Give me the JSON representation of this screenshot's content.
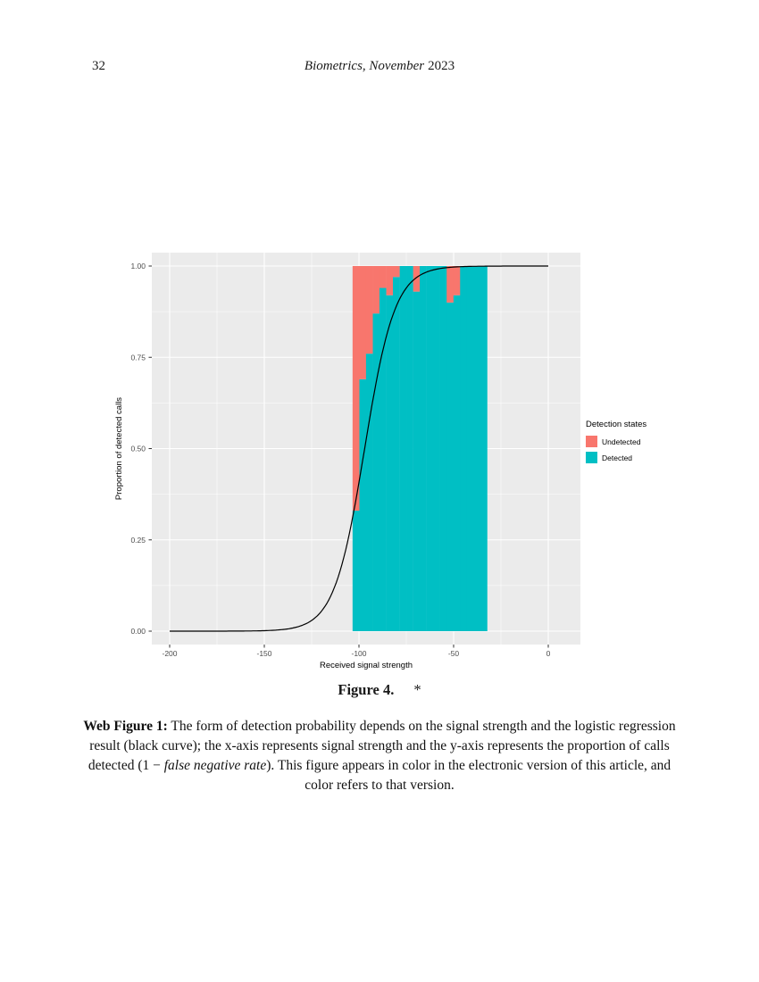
{
  "header": {
    "page_number": "32",
    "journal_italic": "Biometrics, November",
    "journal_year": "2023"
  },
  "figure": {
    "label": "Figure 4.",
    "star": "*"
  },
  "caption": {
    "segments": [
      {
        "text": "Web Figure 1:"
      },
      {
        "text": " The form of detection probability depends on the signal strength and the logistic regression result (black curve); the x-axis represents signal strength and the y-axis represents the proportion of calls detected (1 − "
      },
      {
        "text": "false negative rate"
      },
      {
        "text": "). This figure appears in color in the electronic version of this article, and color refers to that version."
      }
    ]
  },
  "chart_data": {
    "type": "bar",
    "subtype": "stacked-proportion-histogram-with-logistic-curve",
    "title": "",
    "xlabel": "Received signal strength",
    "ylabel": "Proportion of detected calls",
    "xlim": [
      -209,
      17
    ],
    "ylim": [
      -0.04,
      1.04
    ],
    "x_ticks": [
      -200,
      -150,
      -100,
      -50,
      0
    ],
    "x_tick_labels": [
      "-200",
      "-150",
      "-100",
      "-50",
      "0"
    ],
    "x_minor_ticks": [
      -175,
      -125,
      -75,
      -25
    ],
    "y_ticks": [
      0,
      0.25,
      0.5,
      0.75,
      1
    ],
    "y_tick_labels": [
      "0.00",
      "0.25",
      "0.50",
      "0.75",
      "1.00"
    ],
    "y_minor_ticks": [
      0.125,
      0.375,
      0.625,
      0.875
    ],
    "panel_bg": "#EBEBEB",
    "grid_color": "#FFFFFF",
    "tick_label_color": "#4D4D4D",
    "bar_width": 3.55,
    "series": [
      {
        "name": "Undetected",
        "color": "#F8766D"
      },
      {
        "name": "Detected",
        "color": "#00BFC4"
      }
    ],
    "bars": [
      {
        "x": -101.6,
        "detected": 0.33,
        "undetected": 0.67
      },
      {
        "x": -98.0,
        "detected": 0.69,
        "undetected": 0.31
      },
      {
        "x": -94.5,
        "detected": 0.76,
        "undetected": 0.24
      },
      {
        "x": -90.9,
        "detected": 0.87,
        "undetected": 0.13
      },
      {
        "x": -87.4,
        "detected": 0.94,
        "undetected": 0.06
      },
      {
        "x": -83.8,
        "detected": 0.92,
        "undetected": 0.08
      },
      {
        "x": -80.3,
        "detected": 0.97,
        "undetected": 0.03
      },
      {
        "x": -76.7,
        "detected": 1.0,
        "undetected": 0.0
      },
      {
        "x": -73.2,
        "detected": 1.0,
        "undetected": 0.0
      },
      {
        "x": -69.6,
        "detected": 0.93,
        "undetected": 0.07
      },
      {
        "x": -66.1,
        "detected": 1.0,
        "undetected": 0.0
      },
      {
        "x": -62.5,
        "detected": 1.0,
        "undetected": 0.0
      },
      {
        "x": -59.0,
        "detected": 1.0,
        "undetected": 0.0
      },
      {
        "x": -55.4,
        "detected": 1.0,
        "undetected": 0.0
      },
      {
        "x": -51.9,
        "detected": 0.9,
        "undetected": 0.1
      },
      {
        "x": -48.3,
        "detected": 0.92,
        "undetected": 0.08
      },
      {
        "x": -44.8,
        "detected": 1.0,
        "undetected": 0.0
      },
      {
        "x": -41.2,
        "detected": 1.0,
        "undetected": 0.0
      },
      {
        "x": -37.7,
        "detected": 1.0,
        "undetected": 0.0
      },
      {
        "x": -34.1,
        "detected": 1.0,
        "undetected": 0.0
      }
    ],
    "curve": {
      "label": "logistic regression",
      "color": "#000000",
      "x0": -97,
      "scale": 8,
      "x_range": [
        -200,
        0
      ]
    },
    "legend": {
      "title": "Detection states",
      "position": "right",
      "entries": [
        {
          "label": "Undetected",
          "color": "#F8766D"
        },
        {
          "label": "Detected",
          "color": "#00BFC4"
        }
      ]
    }
  }
}
